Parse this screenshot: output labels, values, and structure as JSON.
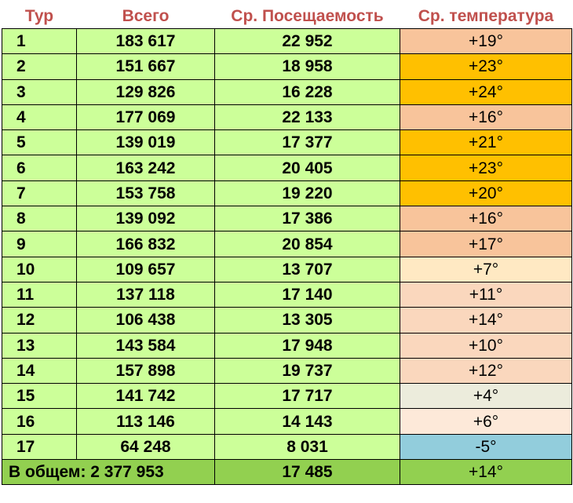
{
  "header": {
    "round": "Тур",
    "total": "Всего",
    "avg_attendance": "Ср. Посещаемость",
    "avg_temperature": "Ср. температура"
  },
  "rows": [
    {
      "round": "1",
      "total": "183 617",
      "avg": "22 952",
      "temp": "+19°",
      "temp_color": "#f8c49b"
    },
    {
      "round": "2",
      "total": "151 667",
      "avg": "18 958",
      "temp": "+23°",
      "temp_color": "#ffc000"
    },
    {
      "round": "3",
      "total": "129 826",
      "avg": "16 228",
      "temp": "+24°",
      "temp_color": "#ffc000"
    },
    {
      "round": "4",
      "total": "177 069",
      "avg": "22 133",
      "temp": "+16°",
      "temp_color": "#f8c49b"
    },
    {
      "round": "5",
      "total": "139 019",
      "avg": "17 377",
      "temp": "+21°",
      "temp_color": "#ffc000"
    },
    {
      "round": "6",
      "total": "163 242",
      "avg": "20 405",
      "temp": "+23°",
      "temp_color": "#ffc000"
    },
    {
      "round": "7",
      "total": "153 758",
      "avg": "19 220",
      "temp": "+20°",
      "temp_color": "#ffc000"
    },
    {
      "round": "8",
      "total": "139 092",
      "avg": "17 386",
      "temp": "+16°",
      "temp_color": "#f8c49b"
    },
    {
      "round": "9",
      "total": "166 832",
      "avg": "20 854",
      "temp": "+17°",
      "temp_color": "#f8c49b"
    },
    {
      "round": "10",
      "total": "109 657",
      "avg": "13 707",
      "temp": "+7°",
      "temp_color": "#ffe9c3"
    },
    {
      "round": "11",
      "total": "137 118",
      "avg": "17 140",
      "temp": "+11°",
      "temp_color": "#fad7bd"
    },
    {
      "round": "12",
      "total": "106 438",
      "avg": "13 305",
      "temp": "+14°",
      "temp_color": "#fad7bd"
    },
    {
      "round": "13",
      "total": "143 584",
      "avg": "17 948",
      "temp": "+10°",
      "temp_color": "#fad7bd"
    },
    {
      "round": "14",
      "total": "157 898",
      "avg": "19 737",
      "temp": "+12°",
      "temp_color": "#fad7bd"
    },
    {
      "round": "15",
      "total": "141 742",
      "avg": "17 717",
      "temp": "+4°",
      "temp_color": "#ececdc"
    },
    {
      "round": "16",
      "total": "113 146",
      "avg": "14 143",
      "temp": "+6°",
      "temp_color": "#fde9d9"
    },
    {
      "round": "17",
      "total": "64 248",
      "avg": "8 031",
      "temp": "-5°",
      "temp_color": "#92cddc"
    }
  ],
  "summary": {
    "label": "В общем: 2 377 953",
    "avg": "17 485",
    "temp": "+14°",
    "temp_color": "#92d050"
  }
}
